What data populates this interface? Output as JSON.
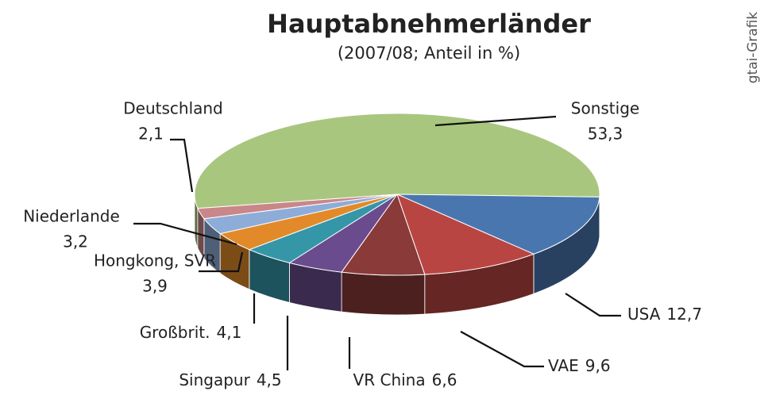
{
  "chart_data": {
    "type": "pie",
    "title": "Hauptabnehmerländer",
    "subtitle": "(2007/08; Anteil in %)",
    "source": "gtai-Grafik",
    "categories": [
      "Sonstige",
      "USA",
      "VAE",
      "VR China",
      "Singapur",
      "Großbrit.",
      "Hongkong, SVR",
      "Niederlande",
      "Deutschland"
    ],
    "values": [
      53.3,
      12.7,
      9.6,
      6.6,
      4.5,
      4.1,
      3.9,
      3.2,
      2.1
    ],
    "value_labels": [
      "53,3",
      "12,7",
      "9,6",
      "6,6",
      "4,5",
      "4,1",
      "3,9",
      "3,2",
      "2,1"
    ],
    "colors": [
      "#a9c67f",
      "#4a76b0",
      "#b94542",
      "#8a3a38",
      "#6a4c8e",
      "#3596a8",
      "#e28a2a",
      "#8eacd8",
      "#c9878a"
    ]
  }
}
